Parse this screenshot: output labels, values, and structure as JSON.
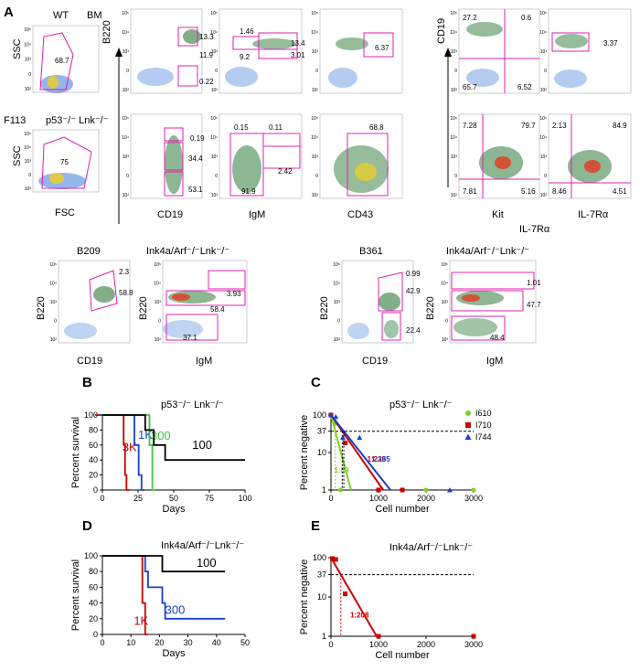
{
  "panel_letters": [
    "A",
    "B",
    "C",
    "D",
    "E"
  ],
  "rowA1": {
    "left": {
      "title1": "WT",
      "title2": "BM",
      "ylabel": "SSC",
      "gate": "68.7"
    },
    "b220_axis": "B220",
    "cd19_axis": "CD19",
    "plots": [
      {
        "gates": [
          "13.3",
          "11.9",
          "0.22"
        ]
      },
      {
        "gates": [
          "1.46",
          "13.4",
          "9.2",
          "3.01"
        ]
      },
      {
        "gates": [
          "6.37"
        ]
      },
      {
        "gates": [
          "27.2",
          "0.6",
          "65.7",
          "6.52"
        ]
      },
      {
        "gates": [
          "3.37"
        ]
      }
    ]
  },
  "rowA2": {
    "left": {
      "title1": "F113",
      "title2": "p53⁻/⁻ Lnk⁻/⁻",
      "ylabel": "SSC",
      "xlabel": "FSC",
      "gate": "75"
    },
    "plots": [
      {
        "gates": [
          "0.19",
          "34.4",
          "53.1"
        ],
        "xlabel": "CD19"
      },
      {
        "gates": [
          "0.15",
          "0.11",
          "2.42",
          "91.9"
        ],
        "xlabel": "IgM"
      },
      {
        "gates": [
          "68.8"
        ],
        "xlabel": "CD43"
      },
      {
        "gates": [
          "7.28",
          "79.7",
          "7.81",
          "5.16"
        ],
        "xlabel": "Kit"
      },
      {
        "gates": [
          "2.13",
          "84.9",
          "8.46",
          "4.51"
        ],
        "xlabel": "IL-7Rα"
      }
    ],
    "sublabel": "IL-7Rα"
  },
  "rowA3": {
    "plots": [
      {
        "title": "B209",
        "ylabel": "B220",
        "xlabel": "CD19",
        "gates": [
          "2.3",
          "58.8"
        ]
      },
      {
        "title": "Ink4a/Arf⁻/⁻Lnk⁻/⁻",
        "ylabel": "B220",
        "xlabel": "IgM",
        "gates": [
          "3.93",
          "58.4",
          "37.1"
        ]
      },
      {
        "title": "B361",
        "ylabel": "B220",
        "xlabel": "CD19",
        "gates": [
          "0.99",
          "42.9",
          "22.4"
        ]
      },
      {
        "title": "Ink4a/Arf⁻/⁻Lnk⁻/⁻",
        "ylabel": "B220",
        "xlabel": "IgM",
        "gates": [
          "1.01",
          "47.7",
          "48.4"
        ]
      }
    ]
  },
  "flow_tick_labels": [
    "10⁵",
    "10⁴",
    "10³",
    "0",
    "10²"
  ],
  "chart_data": [
    {
      "panel": "B",
      "type": "line",
      "title": "p53⁻/⁻ Lnk⁻/⁻",
      "xlabel": "Days",
      "ylabel": "Percent survival",
      "xlim": [
        0,
        100
      ],
      "ylim": [
        0,
        100
      ],
      "xticks": [
        0,
        25,
        50,
        75,
        100
      ],
      "yticks": [
        0,
        20,
        40,
        60,
        80,
        100
      ],
      "series": [
        {
          "name": "3K",
          "color": "#cc0000",
          "points": [
            [
              0,
              100
            ],
            [
              20,
              100
            ],
            [
              20,
              60
            ],
            [
              21,
              60
            ],
            [
              21,
              20
            ],
            [
              22,
              20
            ],
            [
              22,
              0
            ],
            [
              24,
              0
            ]
          ]
        },
        {
          "name": "1K",
          "color": "#1a3fcc",
          "points": [
            [
              0,
              100
            ],
            [
              25,
              100
            ],
            [
              25,
              60
            ],
            [
              28,
              60
            ],
            [
              28,
              20
            ],
            [
              30,
              20
            ],
            [
              30,
              0
            ],
            [
              32,
              0
            ]
          ]
        },
        {
          "name": "300",
          "color": "#44c044",
          "points": [
            [
              0,
              100
            ],
            [
              33,
              100
            ],
            [
              33,
              60
            ],
            [
              35,
              60
            ],
            [
              35,
              0
            ],
            [
              37,
              0
            ]
          ]
        },
        {
          "name": "100",
          "color": "#000000",
          "points": [
            [
              0,
              100
            ],
            [
              30,
              100
            ],
            [
              30,
              80
            ],
            [
              36,
              80
            ],
            [
              36,
              60
            ],
            [
              44,
              60
            ],
            [
              44,
              40
            ],
            [
              100,
              40
            ]
          ]
        }
      ]
    },
    {
      "panel": "C",
      "type": "line",
      "title": "p53⁻/⁻ Lnk⁻/⁻",
      "xlabel": "Cell number",
      "ylabel": "Percent negative",
      "log_y": true,
      "xlim": [
        0,
        3000
      ],
      "ylim": [
        1,
        100
      ],
      "xticks": [
        0,
        1000,
        2000,
        3000
      ],
      "yticks": [
        100,
        37,
        10,
        1
      ],
      "reference_y": 37,
      "legend": [
        "I610",
        "I710",
        "I744"
      ],
      "legend_position": "top-right",
      "series": [
        {
          "name": "I610",
          "color": "#7ed321",
          "ratio": "1:89",
          "fit": [
            [
              0,
              100
            ],
            [
              420,
              1
            ]
          ],
          "points": [
            [
              0,
              100
            ],
            [
              100,
              60
            ],
            [
              200,
              1
            ],
            [
              2000,
              1
            ],
            [
              3000,
              1
            ]
          ]
        },
        {
          "name": "I710",
          "color": "#cc0000",
          "ratio": "1:238",
          "fit": [
            [
              0,
              100
            ],
            [
              1100,
              1
            ]
          ],
          "points": [
            [
              0,
              100
            ],
            [
              300,
              18
            ],
            [
              1000,
              1
            ],
            [
              1500,
              1
            ]
          ]
        },
        {
          "name": "I744",
          "color": "#1a3fcc",
          "ratio": "1:265",
          "fit": [
            [
              0,
              100
            ],
            [
              1250,
              1
            ]
          ],
          "points": [
            [
              0,
              100
            ],
            [
              100,
              90
            ],
            [
              250,
              25
            ],
            [
              600,
              25
            ],
            [
              2500,
              1
            ]
          ]
        }
      ]
    },
    {
      "panel": "D",
      "type": "line",
      "title": "Ink4a/Arf⁻/⁻Lnk⁻/⁻",
      "xlabel": "Days",
      "ylabel": "Percent survival",
      "xlim": [
        0,
        50
      ],
      "ylim": [
        0,
        100
      ],
      "xticks": [
        0,
        10,
        20,
        30,
        40,
        50
      ],
      "yticks": [
        0,
        20,
        40,
        60,
        80,
        100
      ],
      "series": [
        {
          "name": "1K",
          "color": "#cc0000",
          "points": [
            [
              0,
              100
            ],
            [
              14,
              100
            ],
            [
              14,
              40
            ],
            [
              15,
              40
            ],
            [
              15,
              0
            ],
            [
              16,
              0
            ]
          ]
        },
        {
          "name": "300",
          "color": "#1a3fcc",
          "points": [
            [
              0,
              100
            ],
            [
              15,
              100
            ],
            [
              15,
              80
            ],
            [
              16,
              80
            ],
            [
              16,
              60
            ],
            [
              21,
              60
            ],
            [
              21,
              40
            ],
            [
              22,
              40
            ],
            [
              22,
              20
            ],
            [
              43,
              20
            ]
          ]
        },
        {
          "name": "100",
          "color": "#000000",
          "points": [
            [
              0,
              100
            ],
            [
              21,
              100
            ],
            [
              21,
              80
            ],
            [
              43,
              80
            ]
          ]
        }
      ]
    },
    {
      "panel": "E",
      "type": "line",
      "title": "Ink4a/Arf⁻/⁻Lnk⁻/⁻",
      "xlabel": "Cell number",
      "ylabel": "Percent negative",
      "log_y": true,
      "xlim": [
        0,
        3000
      ],
      "ylim": [
        1,
        100
      ],
      "xticks": [
        0,
        1000,
        2000,
        3000
      ],
      "yticks": [
        100,
        37,
        10,
        1
      ],
      "reference_y": 37,
      "series": [
        {
          "name": "",
          "color": "#cc0000",
          "ratio": "1:208",
          "fit": [
            [
              0,
              100
            ],
            [
              960,
              1
            ]
          ],
          "points": [
            [
              30,
              95
            ],
            [
              100,
              90
            ],
            [
              300,
              12
            ],
            [
              1000,
              1
            ],
            [
              3000,
              1
            ]
          ]
        }
      ]
    }
  ]
}
